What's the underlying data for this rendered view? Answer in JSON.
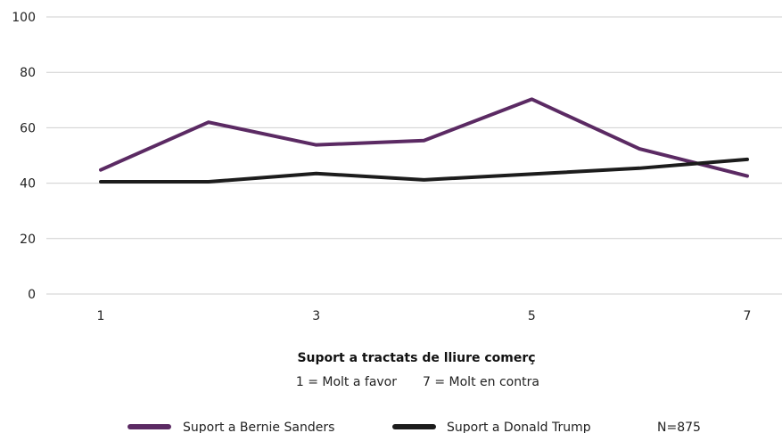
{
  "chart_data": {
    "type": "line",
    "xlabel": "Suport a tractats de lliure comerç",
    "subtitle": {
      "left": "1 = Molt a favor",
      "right": "7 = Molt en contra"
    },
    "x_tick_labels": [
      "1",
      "3",
      "5",
      "7"
    ],
    "y_ticks": [
      0,
      20,
      40,
      60,
      80,
      100
    ],
    "ylim": [
      0,
      100
    ],
    "xlim": [
      1,
      7
    ],
    "grid": true,
    "legend_position": "bottom",
    "note": "N=875",
    "x": [
      1,
      2,
      3,
      4,
      5,
      6,
      7
    ],
    "series": [
      {
        "name": "Suport a Bernie Sanders",
        "color": "#5b2a63",
        "values": [
          44.8,
          62.0,
          53.8,
          55.4,
          70.3,
          52.4,
          42.6
        ]
      },
      {
        "name": "Suport a Donald Trump",
        "color": "#1c1c1c",
        "values": [
          40.5,
          40.5,
          43.5,
          41.2,
          43.3,
          45.4,
          48.6
        ]
      }
    ]
  }
}
